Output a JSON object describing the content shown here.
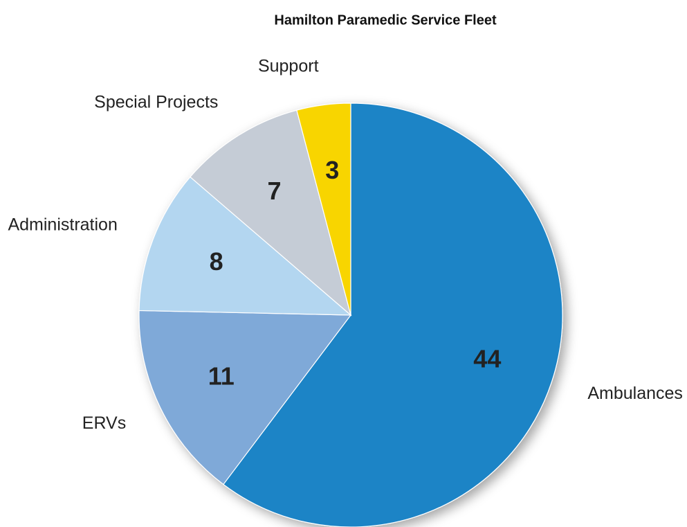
{
  "chart_data": {
    "type": "pie",
    "title": "Hamilton Paramedic Service Fleet",
    "categories": [
      "Ambulances",
      "ERVs",
      "Administration",
      "Special Projects",
      "Support"
    ],
    "values": [
      44,
      11,
      8,
      7,
      3
    ],
    "colors": [
      "#1f84c6",
      "#7fa9d8",
      "#b3d6f0",
      "#c5ccd6",
      "#f8d500"
    ]
  }
}
